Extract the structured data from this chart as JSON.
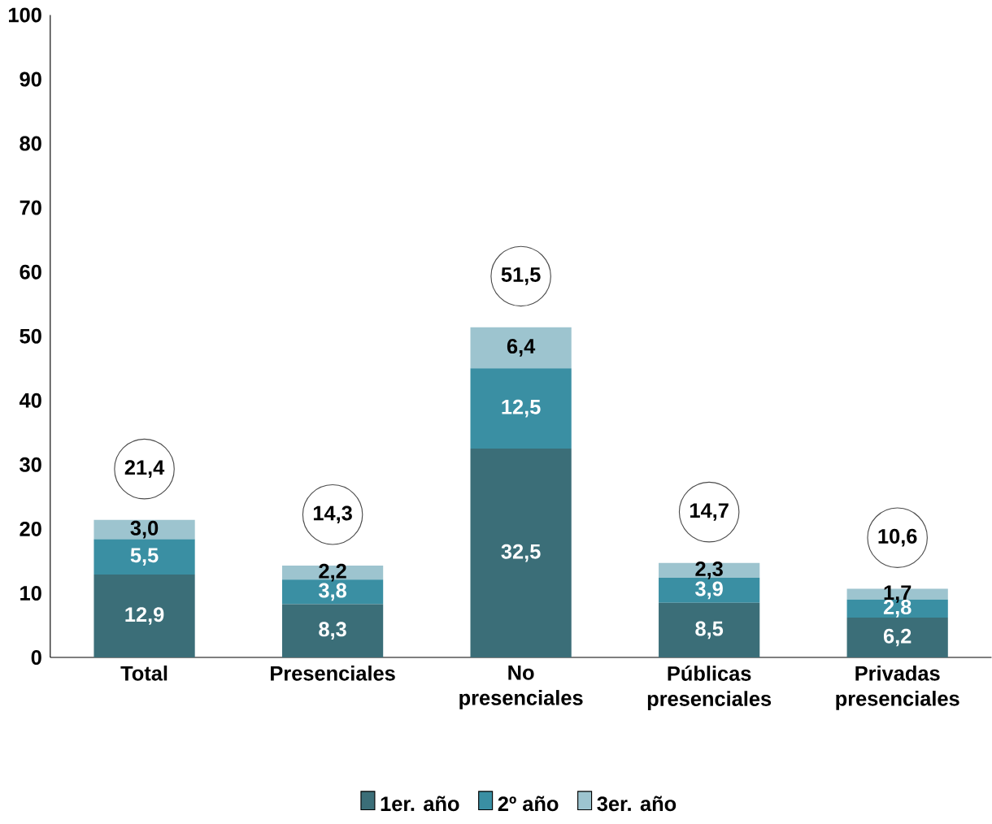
{
  "chart_data": {
    "type": "bar",
    "stacked": true,
    "categories": [
      "Total",
      "Presenciales",
      "No presenciales",
      "Públicas presenciales",
      "Privadas presenciales"
    ],
    "series": [
      {
        "name": "1er. año",
        "color": "#3b6e78",
        "values": [
          12.9,
          8.3,
          32.5,
          8.5,
          6.2
        ],
        "value_labels": [
          "12,9",
          "8,3",
          "32,5",
          "8,5",
          "6,2"
        ]
      },
      {
        "name": "2º año",
        "color": "#3a8fa3",
        "values": [
          5.5,
          3.8,
          12.5,
          3.9,
          2.8
        ],
        "value_labels": [
          "5,5",
          "3,8",
          "12,5",
          "3,9",
          "2,8"
        ]
      },
      {
        "name": "3er. año",
        "color": "#9dc4cf",
        "values": [
          3.0,
          2.2,
          6.4,
          2.3,
          1.7
        ],
        "value_labels": [
          "3,0",
          "2,2",
          "6,4",
          "2,3",
          "1,7"
        ]
      }
    ],
    "totals": [
      "21,4",
      "14,3",
      "51,5",
      "14,7",
      "10,6"
    ],
    "ylim": [
      0,
      100
    ],
    "yticks": [
      0,
      10,
      20,
      30,
      40,
      50,
      60,
      70,
      80,
      90,
      100
    ],
    "legend": "bottom",
    "grid": false
  }
}
